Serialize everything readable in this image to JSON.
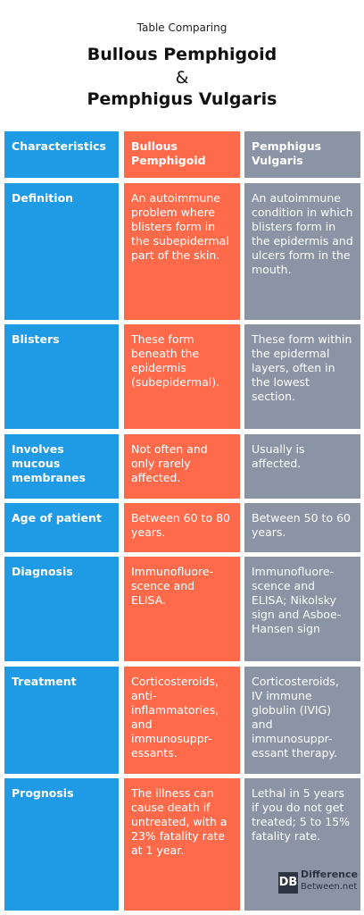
{
  "header": {
    "subtitle": "Table Comparing",
    "title1": "Bullous Pemphigoid",
    "amp": "&",
    "title2": "Pemphigus Vulgaris"
  },
  "columns": [
    "Characteristics",
    "Bullous Pemphigoid",
    "Pemphigus Vulgaris"
  ],
  "rows": [
    {
      "label": "Definition",
      "bp": "An autoimmune problem where blisters form in the subepidermal part of the skin.",
      "pv": "An autoimmune condition in which blisters form in the epidermis and ulcers form in the mouth."
    },
    {
      "label": "Blisters",
      "bp": "These form beneath the epidermis (subepidermal).",
      "pv": "These form within the epidermal layers, often in the lowest section."
    },
    {
      "label": "Involves mucous membranes",
      "bp": "Not often and only rarely affected.",
      "pv": "Usually is affected."
    },
    {
      "label": "Age of patient",
      "bp": "Between 60 to 80 years.",
      "pv": "Between 50 to 60 years."
    },
    {
      "label": "Diagnosis",
      "bp": "Immunofluore-scence and ELISA.",
      "pv": "Immunofluore-scence and ELISA; Nikolsky sign and Asboe-Hansen sign"
    },
    {
      "label": "Treatment",
      "bp": "Corticosteroids, anti-inflammatories, and immunosuppr-essants.",
      "pv": "Corticosteroids, IV immune globulin (IVIG) and immunosuppr-essant therapy."
    },
    {
      "label": "Prognosis",
      "bp": "The illness can cause death if untreated, with a 23% fatality rate at 1 year.",
      "pv": "Lethal in 5 years if you do not get treated; 5 to 15% fatality rate."
    }
  ],
  "logo": {
    "mark": "DB",
    "line1": "Difference",
    "line2": "Between.net"
  }
}
